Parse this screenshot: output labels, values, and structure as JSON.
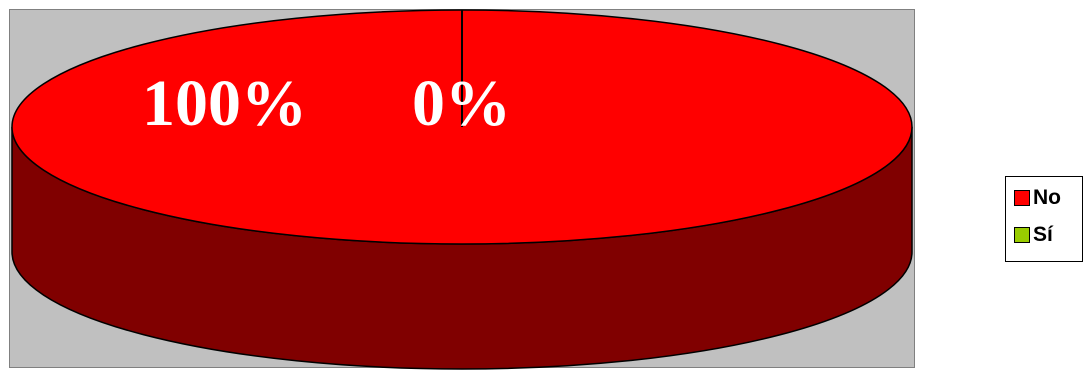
{
  "chart_data": {
    "type": "pie",
    "style": "3d",
    "categories": [
      "No",
      "Sí"
    ],
    "values": [
      100,
      0
    ],
    "data_labels": [
      "100%",
      "0%"
    ],
    "colors": [
      "#ff0000",
      "#99cc00"
    ],
    "side_color": "#800000",
    "background": "#c0c0c0",
    "legend": {
      "position": "right",
      "entries": [
        "No",
        "Sí"
      ]
    }
  }
}
